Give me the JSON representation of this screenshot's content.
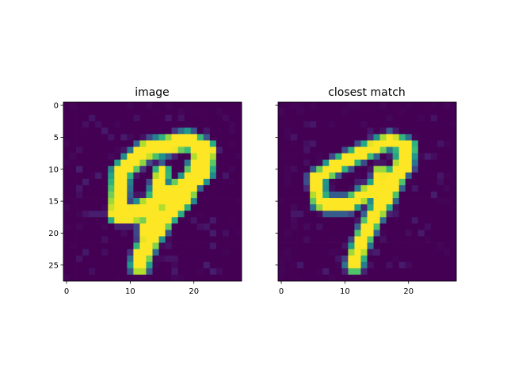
{
  "chart_data": [
    {
      "type": "heatmap",
      "title": "image",
      "xlim": [
        -0.5,
        27.5
      ],
      "ylim": [
        27.5,
        -0.5
      ],
      "xticks": [
        "0",
        "10",
        "20"
      ],
      "yticks": [
        "0",
        "5",
        "10",
        "15",
        "20",
        "25"
      ],
      "yticklabels_visible": true,
      "colormap": "viridis",
      "shape": [
        28,
        28
      ],
      "strokes": [
        {
          "path": [
            [
              8.5,
              17.5
            ],
            [
              9,
              11
            ],
            [
              13,
              7.5
            ],
            [
              19.5,
              6
            ],
            [
              22.5,
              7.5
            ],
            [
              22,
              11
            ],
            [
              16,
              15
            ],
            [
              11,
              17.5
            ],
            [
              8.5,
              17.5
            ]
          ],
          "width": 2.2
        },
        {
          "path": [
            [
              21.5,
              9
            ],
            [
              19,
              15
            ],
            [
              16,
              18
            ],
            [
              14,
              21
            ],
            [
              12.5,
              23.5
            ],
            [
              12,
              25.5
            ]
          ],
          "width": 2.2
        },
        {
          "path": [
            [
              15.5,
              11
            ],
            [
              14,
              17
            ],
            [
              13,
              20
            ]
          ],
          "width": 1.6
        }
      ]
    },
    {
      "type": "heatmap",
      "title": "closest match",
      "xlim": [
        -0.5,
        27.5
      ],
      "ylim": [
        27.5,
        -0.5
      ],
      "xticks": [
        "0",
        "10",
        "20"
      ],
      "yticks": [
        "0",
        "5",
        "10",
        "15",
        "20",
        "25"
      ],
      "yticklabels_visible": false,
      "colormap": "viridis",
      "shape": [
        28,
        28
      ],
      "strokes": [
        {
          "path": [
            [
              6.5,
              15.5
            ],
            [
              6,
              12
            ],
            [
              9,
              10
            ],
            [
              13,
              8
            ],
            [
              17.5,
              6
            ],
            [
              20.5,
              7
            ],
            [
              20,
              10
            ],
            [
              16,
              13
            ],
            [
              11,
              16
            ],
            [
              7.5,
              16
            ],
            [
              6.5,
              15.5
            ]
          ],
          "width": 1.6
        },
        {
          "path": [
            [
              20,
              8
            ],
            [
              19,
              11
            ],
            [
              17,
              15
            ],
            [
              15,
              18
            ],
            [
              13.5,
              21
            ],
            [
              12.5,
              23.5
            ],
            [
              12,
              25.5
            ]
          ],
          "width": 1.8
        },
        {
          "path": [
            [
              16,
              11
            ],
            [
              15.5,
              15
            ]
          ],
          "width": 1.2
        }
      ]
    }
  ]
}
